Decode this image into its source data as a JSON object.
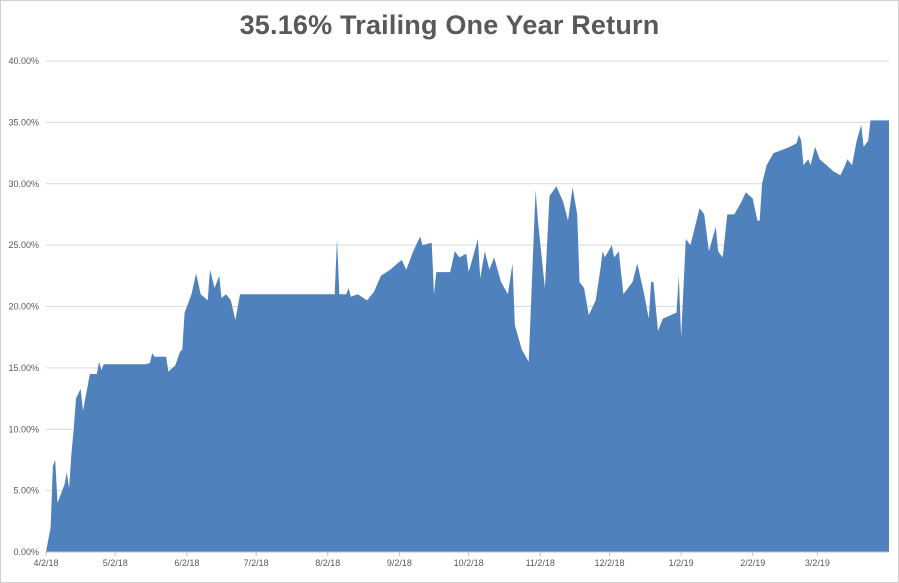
{
  "chart_data": {
    "type": "area",
    "title": "35.16% Trailing One Year Return",
    "xlabel": "",
    "ylabel": "",
    "ylim": [
      0,
      40
    ],
    "grid": true,
    "legend": "none",
    "series_color": "#4F81BD",
    "grid_color": "#D9D9D9",
    "y_ticks": [
      0,
      5,
      10,
      15,
      20,
      25,
      30,
      35,
      40
    ],
    "y_tick_labels": [
      "0.00%",
      "5.00%",
      "10.00%",
      "15.00%",
      "20.00%",
      "25.00%",
      "30.00%",
      "35.00%",
      "40.00%"
    ],
    "x_ticks": [
      "2018-04-02",
      "2018-05-02",
      "2018-06-02",
      "2018-07-02",
      "2018-08-02",
      "2018-09-02",
      "2018-10-02",
      "2018-11-02",
      "2018-12-02",
      "2019-01-02",
      "2019-02-02",
      "2019-03-02"
    ],
    "x_tick_labels": [
      "4/2/18",
      "5/2/18",
      "6/2/18",
      "7/2/18",
      "8/2/18",
      "9/2/18",
      "10/2/18",
      "11/2/18",
      "12/2/18",
      "1/2/19",
      "2/2/19",
      "3/2/19"
    ],
    "x_range": [
      "2018-04-02",
      "2019-04-02"
    ],
    "points": [
      [
        "2018-04-02",
        0.0
      ],
      [
        "2018-04-04",
        2.0
      ],
      [
        "2018-04-05",
        7.0
      ],
      [
        "2018-04-06",
        7.5
      ],
      [
        "2018-04-07",
        4.0
      ],
      [
        "2018-04-09",
        5.0
      ],
      [
        "2018-04-10",
        5.5
      ],
      [
        "2018-04-11",
        6.5
      ],
      [
        "2018-04-12",
        5.2
      ],
      [
        "2018-04-13",
        8.0
      ],
      [
        "2018-04-14",
        10.0
      ],
      [
        "2018-04-15",
        12.5
      ],
      [
        "2018-04-17",
        13.3
      ],
      [
        "2018-04-18",
        11.5
      ],
      [
        "2018-04-20",
        13.5
      ],
      [
        "2018-04-21",
        14.5
      ],
      [
        "2018-04-24",
        14.5
      ],
      [
        "2018-04-25",
        15.5
      ],
      [
        "2018-04-26",
        14.8
      ],
      [
        "2018-04-27",
        15.3
      ],
      [
        "2018-05-05",
        15.3
      ],
      [
        "2018-05-15",
        15.3
      ],
      [
        "2018-05-17",
        15.4
      ],
      [
        "2018-05-18",
        16.2
      ],
      [
        "2018-05-19",
        15.9
      ],
      [
        "2018-05-23",
        15.9
      ],
      [
        "2018-05-24",
        15.9
      ],
      [
        "2018-05-25",
        14.7
      ],
      [
        "2018-05-28",
        15.2
      ],
      [
        "2018-05-30",
        16.3
      ],
      [
        "2018-05-31",
        16.5
      ],
      [
        "2018-06-01",
        19.5
      ],
      [
        "2018-06-04",
        21.0
      ],
      [
        "2018-06-06",
        22.7
      ],
      [
        "2018-06-08",
        21.0
      ],
      [
        "2018-06-11",
        20.5
      ],
      [
        "2018-06-12",
        23.0
      ],
      [
        "2018-06-14",
        21.5
      ],
      [
        "2018-06-16",
        22.5
      ],
      [
        "2018-06-17",
        20.7
      ],
      [
        "2018-06-19",
        21.0
      ],
      [
        "2018-06-21",
        20.5
      ],
      [
        "2018-06-23",
        18.9
      ],
      [
        "2018-06-25",
        21.0
      ],
      [
        "2018-08-02",
        21.0
      ],
      [
        "2018-08-05",
        21.0
      ],
      [
        "2018-08-06",
        25.5
      ],
      [
        "2018-08-07",
        21.0
      ],
      [
        "2018-08-10",
        21.0
      ],
      [
        "2018-08-11",
        21.5
      ],
      [
        "2018-08-12",
        20.8
      ],
      [
        "2018-08-15",
        21.0
      ],
      [
        "2018-08-19",
        20.5
      ],
      [
        "2018-08-22",
        21.2
      ],
      [
        "2018-08-25",
        22.5
      ],
      [
        "2018-08-29",
        23.0
      ],
      [
        "2018-09-03",
        23.8
      ],
      [
        "2018-09-05",
        23.0
      ],
      [
        "2018-09-08",
        24.5
      ],
      [
        "2018-09-11",
        25.7
      ],
      [
        "2018-09-12",
        25.0
      ],
      [
        "2018-09-16",
        25.2
      ],
      [
        "2018-09-17",
        21.0
      ],
      [
        "2018-09-18",
        22.8
      ],
      [
        "2018-09-24",
        22.8
      ],
      [
        "2018-09-26",
        24.5
      ],
      [
        "2018-09-28",
        24.0
      ],
      [
        "2018-10-01",
        24.3
      ],
      [
        "2018-10-02",
        22.8
      ],
      [
        "2018-10-06",
        25.5
      ],
      [
        "2018-10-07",
        22.3
      ],
      [
        "2018-10-09",
        24.5
      ],
      [
        "2018-10-11",
        23.0
      ],
      [
        "2018-10-13",
        24.0
      ],
      [
        "2018-10-16",
        22.0
      ],
      [
        "2018-10-19",
        21.0
      ],
      [
        "2018-10-21",
        23.5
      ],
      [
        "2018-10-22",
        18.5
      ],
      [
        "2018-10-25",
        16.5
      ],
      [
        "2018-10-28",
        15.5
      ],
      [
        "2018-10-31",
        29.5
      ],
      [
        "2018-11-01",
        27.0
      ],
      [
        "2018-11-04",
        21.5
      ],
      [
        "2018-11-06",
        29.0
      ],
      [
        "2018-11-09",
        29.8
      ],
      [
        "2018-11-12",
        28.5
      ],
      [
        "2018-11-14",
        27.0
      ],
      [
        "2018-11-16",
        29.7
      ],
      [
        "2018-11-18",
        27.5
      ],
      [
        "2018-11-19",
        22.0
      ],
      [
        "2018-11-21",
        21.5
      ],
      [
        "2018-11-23",
        19.3
      ],
      [
        "2018-11-26",
        20.5
      ],
      [
        "2018-11-28",
        23.0
      ],
      [
        "2018-11-29",
        24.5
      ],
      [
        "2018-11-30",
        24.0
      ],
      [
        "2018-12-03",
        25.0
      ],
      [
        "2018-12-04",
        24.0
      ],
      [
        "2018-12-06",
        24.5
      ],
      [
        "2018-12-08",
        21.0
      ],
      [
        "2018-12-12",
        22.0
      ],
      [
        "2018-12-14",
        23.5
      ],
      [
        "2018-12-17",
        21.0
      ],
      [
        "2018-12-19",
        19.0
      ],
      [
        "2018-12-20",
        22.0
      ],
      [
        "2018-12-21",
        22.0
      ],
      [
        "2018-12-23",
        18.0
      ],
      [
        "2018-12-25",
        19.0
      ],
      [
        "2018-12-31",
        19.5
      ],
      [
        "2019-01-01",
        22.5
      ],
      [
        "2019-01-02",
        17.5
      ],
      [
        "2019-01-04",
        25.5
      ],
      [
        "2019-01-06",
        25.0
      ],
      [
        "2019-01-08",
        26.5
      ],
      [
        "2019-01-10",
        28.0
      ],
      [
        "2019-01-12",
        27.5
      ],
      [
        "2019-01-14",
        24.5
      ],
      [
        "2019-01-17",
        26.5
      ],
      [
        "2019-01-18",
        24.5
      ],
      [
        "2019-01-20",
        24.0
      ],
      [
        "2019-01-22",
        27.5
      ],
      [
        "2019-01-25",
        27.5
      ],
      [
        "2019-01-28",
        28.5
      ],
      [
        "2019-01-30",
        29.3
      ],
      [
        "2019-02-02",
        28.8
      ],
      [
        "2019-02-04",
        27.0
      ],
      [
        "2019-02-05",
        27.0
      ],
      [
        "2019-02-06",
        30.0
      ],
      [
        "2019-02-08",
        31.5
      ],
      [
        "2019-02-11",
        32.5
      ],
      [
        "2019-02-14",
        32.7
      ],
      [
        "2019-02-18",
        33.0
      ],
      [
        "2019-02-21",
        33.3
      ],
      [
        "2019-02-22",
        34.0
      ],
      [
        "2019-02-23",
        33.5
      ],
      [
        "2019-02-24",
        31.5
      ],
      [
        "2019-02-26",
        32.0
      ],
      [
        "2019-02-27",
        31.5
      ],
      [
        "2019-03-01",
        33.0
      ],
      [
        "2019-03-03",
        32.0
      ],
      [
        "2019-03-06",
        31.5
      ],
      [
        "2019-03-09",
        31.0
      ],
      [
        "2019-03-12",
        30.7
      ],
      [
        "2019-03-14",
        31.5
      ],
      [
        "2019-03-15",
        32.0
      ],
      [
        "2019-03-17",
        31.5
      ],
      [
        "2019-03-19",
        33.5
      ],
      [
        "2019-03-21",
        34.8
      ],
      [
        "2019-03-22",
        33.0
      ],
      [
        "2019-03-24",
        33.5
      ],
      [
        "2019-03-25",
        35.16
      ]
    ]
  }
}
